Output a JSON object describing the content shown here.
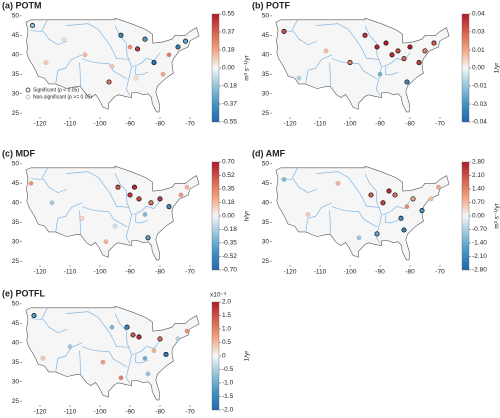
{
  "chart_data": [
    {
      "type": "scatter",
      "title": "(a) POTM",
      "xlim": [
        -126,
        -65
      ],
      "ylim": [
        24,
        51
      ],
      "xticks": [
        -120,
        -110,
        -100,
        -90,
        -80,
        -70
      ],
      "yticks": [
        25,
        30,
        35,
        40,
        45,
        50
      ],
      "colorbar": {
        "label": "m³ s⁻¹/yr",
        "lim": [
          -0.55,
          0.55
        ],
        "ticks": [
          -0.55,
          {
            "value": -0.3667,
            "label": "-0.37"
          },
          {
            "value": -0.1833,
            "label": "-0.18"
          },
          {
            "value": 0,
            "label": "0.00"
          },
          {
            "value": 0.1833,
            "label": "0.18"
          },
          {
            "value": 0.3667,
            "label": "0.37"
          },
          0.55
        ]
      },
      "legend": [
        "Significant (p < 0.05)",
        "Non-significant (p >= 0.05)"
      ],
      "x": [
        -122.5,
        -118,
        -112,
        -105,
        -97,
        -93,
        -90,
        -87.5,
        -85,
        -82,
        -79,
        -77,
        -74,
        -71.5,
        -88,
        -96
      ],
      "y": [
        47.5,
        38,
        44,
        40,
        33,
        45,
        42,
        41.5,
        44,
        38,
        35,
        40,
        42,
        43.5,
        34,
        37
      ],
      "values": [
        -0.2,
        0.1,
        -0.05,
        0.15,
        0.3,
        -0.4,
        0.25,
        0.45,
        -0.35,
        -0.5,
        0.2,
        0.3,
        -0.45,
        -0.3,
        0.05,
        0.12
      ],
      "significant": [
        true,
        false,
        false,
        false,
        true,
        true,
        false,
        true,
        true,
        true,
        false,
        false,
        true,
        true,
        false,
        false
      ]
    },
    {
      "type": "scatter",
      "title": "(b) POTF",
      "xlim": [
        -126,
        -65
      ],
      "ylim": [
        24,
        51
      ],
      "xticks": [
        -120,
        -110,
        -100,
        -90,
        -80,
        -70
      ],
      "yticks": [
        25,
        30,
        35,
        40,
        45,
        50
      ],
      "colorbar": {
        "label": "1/yr",
        "lim": [
          -0.04,
          0.04
        ],
        "ticks": [
          -0.04,
          {
            "value": -0.0267,
            "label": "-0.03"
          },
          {
            "value": -0.0133,
            "label": "-0.01"
          },
          {
            "value": 0,
            "label": "0.00"
          },
          {
            "value": 0.0133,
            "label": "0.01"
          },
          {
            "value": 0.0267,
            "label": "0.03"
          },
          0.04
        ]
      },
      "x": [
        -122,
        -117,
        -108,
        -100,
        -95,
        -91,
        -88,
        -86,
        -84,
        -82,
        -80,
        -77,
        -75,
        -72,
        -90,
        -81
      ],
      "y": [
        46,
        34,
        41,
        38,
        45,
        42,
        43,
        40,
        41,
        39,
        42,
        38,
        41,
        43,
        35,
        33
      ],
      "values": [
        0.03,
        -0.01,
        0.01,
        0.02,
        0.035,
        0.038,
        0.04,
        0.036,
        0.03,
        0.025,
        0.039,
        0.033,
        0.02,
        0.028,
        -0.02,
        -0.03
      ],
      "significant": [
        true,
        false,
        false,
        true,
        true,
        true,
        true,
        true,
        true,
        true,
        true,
        true,
        true,
        true,
        false,
        true
      ]
    },
    {
      "type": "scatter",
      "title": "(c) MDF",
      "xlim": [
        -126,
        -65
      ],
      "ylim": [
        24,
        51
      ],
      "xticks": [
        -120,
        -110,
        -100,
        -90,
        -80,
        -70
      ],
      "yticks": [
        25,
        30,
        35,
        40,
        45,
        50
      ],
      "colorbar": {
        "label": "h/yr",
        "lim": [
          -0.7,
          0.7
        ],
        "ticks": [
          {
            "value": -0.7,
            "label": "-0.70"
          },
          {
            "value": -0.525,
            "label": "-0.52"
          },
          -0.35,
          {
            "value": -0.175,
            "label": "-0.18"
          },
          {
            "value": 0,
            "label": "0.00"
          },
          {
            "value": 0.175,
            "label": "0.18"
          },
          0.35,
          {
            "value": 0.525,
            "label": "0.52"
          },
          {
            "value": 0.7,
            "label": "0.70"
          }
        ]
      },
      "x": [
        -123,
        -116,
        -106,
        -98,
        -94,
        -90,
        -88.5,
        -87,
        -85,
        -83,
        -80,
        -77,
        -73,
        -71,
        -95,
        -84
      ],
      "y": [
        45,
        40,
        36,
        30,
        44,
        42,
        44,
        41,
        37,
        40,
        41,
        39,
        42,
        44,
        34,
        31
      ],
      "values": [
        0.3,
        -0.2,
        0.1,
        0.2,
        0.5,
        0.6,
        0.65,
        0.55,
        -0.3,
        0.4,
        0.6,
        -0.5,
        0.3,
        0.2,
        -0.1,
        -0.4
      ],
      "significant": [
        false,
        false,
        false,
        false,
        true,
        true,
        true,
        true,
        false,
        true,
        true,
        true,
        false,
        false,
        false,
        true
      ]
    },
    {
      "type": "scatter",
      "title": "(d) AMF",
      "xlim": [
        -126,
        -65
      ],
      "ylim": [
        24,
        51
      ],
      "xticks": [
        -120,
        -110,
        -100,
        -90,
        -80,
        -70
      ],
      "yticks": [
        25,
        30,
        35,
        40,
        45,
        50
      ],
      "colorbar": {
        "label": "m³ s⁻¹/yr",
        "lim": [
          -2.8,
          2.8
        ],
        "ticks": [
          {
            "value": -2.8,
            "label": "-2.80"
          },
          {
            "value": -2.1,
            "label": "-2.10"
          },
          {
            "value": -1.4,
            "label": "-1.40"
          },
          {
            "value": -0.7,
            "label": "-0.70"
          },
          {
            "value": 0,
            "label": "0.00"
          },
          {
            "value": 0.7,
            "label": "0.70"
          },
          {
            "value": 1.4,
            "label": "1.40"
          },
          {
            "value": 2.1,
            "label": "2.10"
          },
          {
            "value": 2.8,
            "label": "2.80"
          }
        ]
      },
      "x": [
        -122,
        -114,
        -104,
        -97,
        -93,
        -89,
        -87,
        -85,
        -83,
        -81,
        -79,
        -76,
        -73,
        -70.5,
        -91,
        -82
      ],
      "y": [
        46,
        37,
        45,
        31,
        42,
        40,
        43,
        42,
        36,
        39,
        41,
        38,
        41,
        44,
        32,
        33
      ],
      "values": [
        -1.2,
        0.5,
        0.8,
        -0.9,
        1.9,
        2.2,
        2.5,
        1.6,
        -2.0,
        1.3,
        0.9,
        -1.8,
        0.7,
        1.0,
        -1.5,
        -2.3
      ],
      "significant": [
        false,
        false,
        false,
        false,
        true,
        true,
        true,
        true,
        true,
        false,
        true,
        true,
        false,
        false,
        true,
        true
      ]
    },
    {
      "type": "scatter",
      "title": "(e) POTFL",
      "xlim": [
        -126,
        -65
      ],
      "ylim": [
        24,
        51
      ],
      "xticks": [
        -120,
        -110,
        -100,
        -90,
        -80,
        -70
      ],
      "yticks": [
        25,
        30,
        35,
        40,
        45,
        50
      ],
      "colorbar": {
        "label": "1/yr",
        "exponent": "x10⁻³",
        "lim": [
          -2,
          2
        ],
        "ticks": [
          {
            "value": -2,
            "label": "-2.0"
          },
          -1.5,
          {
            "value": -1,
            "label": "-1.0"
          },
          -0.5,
          0,
          0.5,
          {
            "value": 1,
            "label": "1.0"
          },
          1.5,
          {
            "value": 2,
            "label": "2.0"
          }
        ]
      },
      "x": [
        -122,
        -119,
        -110,
        -99,
        -96,
        -91,
        -89,
        -87,
        -85,
        -82,
        -80,
        -78,
        -74,
        -71,
        -93,
        -84
      ],
      "y": [
        47,
        36,
        39,
        35,
        44,
        44,
        42,
        41.5,
        36,
        38,
        41,
        37,
        41,
        43,
        31,
        32
      ],
      "values": [
        -1.2,
        0.4,
        -0.6,
        0.8,
        -0.9,
        -1.5,
        1.4,
        1.8,
        -1.0,
        0.6,
        1.2,
        -1.7,
        -0.5,
        0.9,
        1.1,
        -0.7
      ],
      "significant": [
        true,
        false,
        false,
        false,
        false,
        true,
        true,
        true,
        false,
        false,
        true,
        true,
        false,
        false,
        false,
        false
      ]
    }
  ]
}
